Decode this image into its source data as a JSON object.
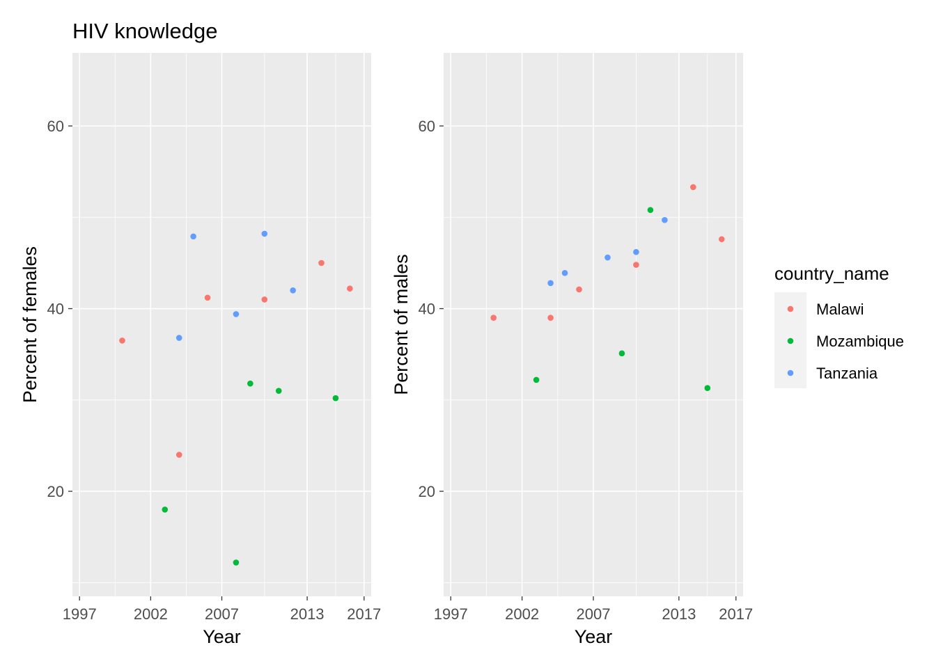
{
  "title": "HIV knowledge",
  "colors": {
    "Malawi": "#F8766D",
    "Mozambique": "#00BA38",
    "Tanzania": "#619CFF",
    "panel_bg": "#EBEBEB",
    "grid": "#FFFFFF",
    "tick_text": "#4D4D4D"
  },
  "legend": {
    "title": "country_name",
    "items": [
      "Malawi",
      "Mozambique",
      "Tanzania"
    ]
  },
  "chart_data": [
    {
      "type": "scatter",
      "xlabel": "Year",
      "ylabel": "Percent of females",
      "xlim": [
        1996.5,
        2017.5
      ],
      "ylim": [
        8.5,
        68
      ],
      "x_ticks": [
        1997,
        2002,
        2007,
        2013,
        2017
      ],
      "y_ticks": [
        20,
        40,
        60
      ],
      "series": [
        {
          "name": "Malawi",
          "points": [
            [
              2000,
              36.5
            ],
            [
              2004,
              24
            ],
            [
              2006,
              41.2
            ],
            [
              2010,
              41
            ],
            [
              2014,
              45
            ],
            [
              2016,
              42.2
            ]
          ]
        },
        {
          "name": "Mozambique",
          "points": [
            [
              2003,
              18
            ],
            [
              2008,
              12.2
            ],
            [
              2009,
              31.8
            ],
            [
              2011,
              31
            ],
            [
              2015,
              30.2
            ]
          ]
        },
        {
          "name": "Tanzania",
          "points": [
            [
              2004,
              36.8
            ],
            [
              2005,
              47.9
            ],
            [
              2008,
              39.4
            ],
            [
              2010,
              48.2
            ],
            [
              2012,
              42
            ]
          ]
        }
      ]
    },
    {
      "type": "scatter",
      "xlabel": "Year",
      "ylabel": "Percent of males",
      "xlim": [
        1996.5,
        2017.5
      ],
      "ylim": [
        8.5,
        68
      ],
      "x_ticks": [
        1997,
        2002,
        2007,
        2013,
        2017
      ],
      "y_ticks": [
        20,
        40,
        60
      ],
      "series": [
        {
          "name": "Malawi",
          "points": [
            [
              2000,
              39
            ],
            [
              2004,
              39
            ],
            [
              2006,
              42.1
            ],
            [
              2010,
              44.8
            ],
            [
              2014,
              53.3
            ],
            [
              2016,
              47.6
            ]
          ]
        },
        {
          "name": "Mozambique",
          "points": [
            [
              2003,
              32.2
            ],
            [
              2009,
              35.1
            ],
            [
              2011,
              50.8
            ],
            [
              2015,
              31.3
            ]
          ]
        },
        {
          "name": "Tanzania",
          "points": [
            [
              2004,
              42.8
            ],
            [
              2005,
              43.9
            ],
            [
              2008,
              45.6
            ],
            [
              2010,
              46.2
            ],
            [
              2012,
              49.7
            ]
          ]
        }
      ]
    }
  ]
}
